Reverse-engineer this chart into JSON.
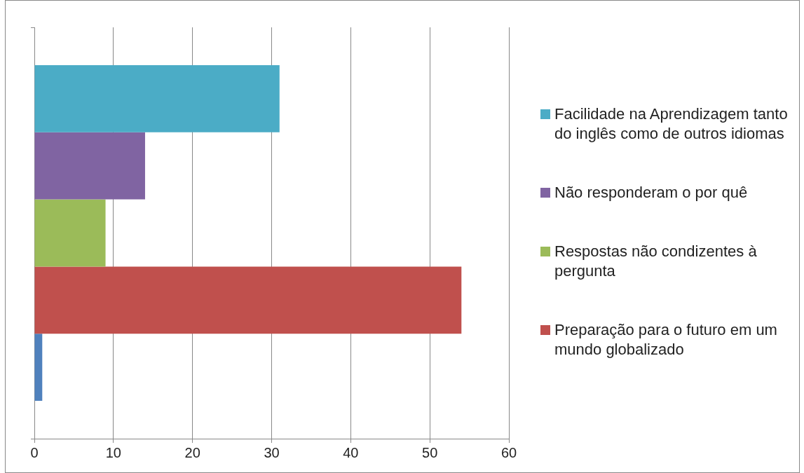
{
  "chart_data": {
    "type": "bar",
    "orientation": "horizontal",
    "categories": [
      null
    ],
    "series": [
      {
        "name": "Facilidade na Aprendizagem tanto do inglês como de outros idiomas",
        "color": "#4bacc6",
        "values": [
          31
        ]
      },
      {
        "name": "Não responderam o por quê",
        "color": "#8064a2",
        "values": [
          14
        ]
      },
      {
        "name": "Respostas não condizentes à pergunta",
        "color": "#9bbb59",
        "values": [
          9
        ]
      },
      {
        "name": "Preparação para o futuro em um mundo globalizado",
        "color": "#c0504d",
        "values": [
          54
        ]
      },
      {
        "color": "#4f81bd",
        "values": [
          1
        ]
      }
    ],
    "xlim": [
      0,
      60
    ],
    "xticks": [
      0,
      10,
      20,
      30,
      40,
      50,
      60
    ],
    "grid": "x",
    "legend": "right"
  }
}
